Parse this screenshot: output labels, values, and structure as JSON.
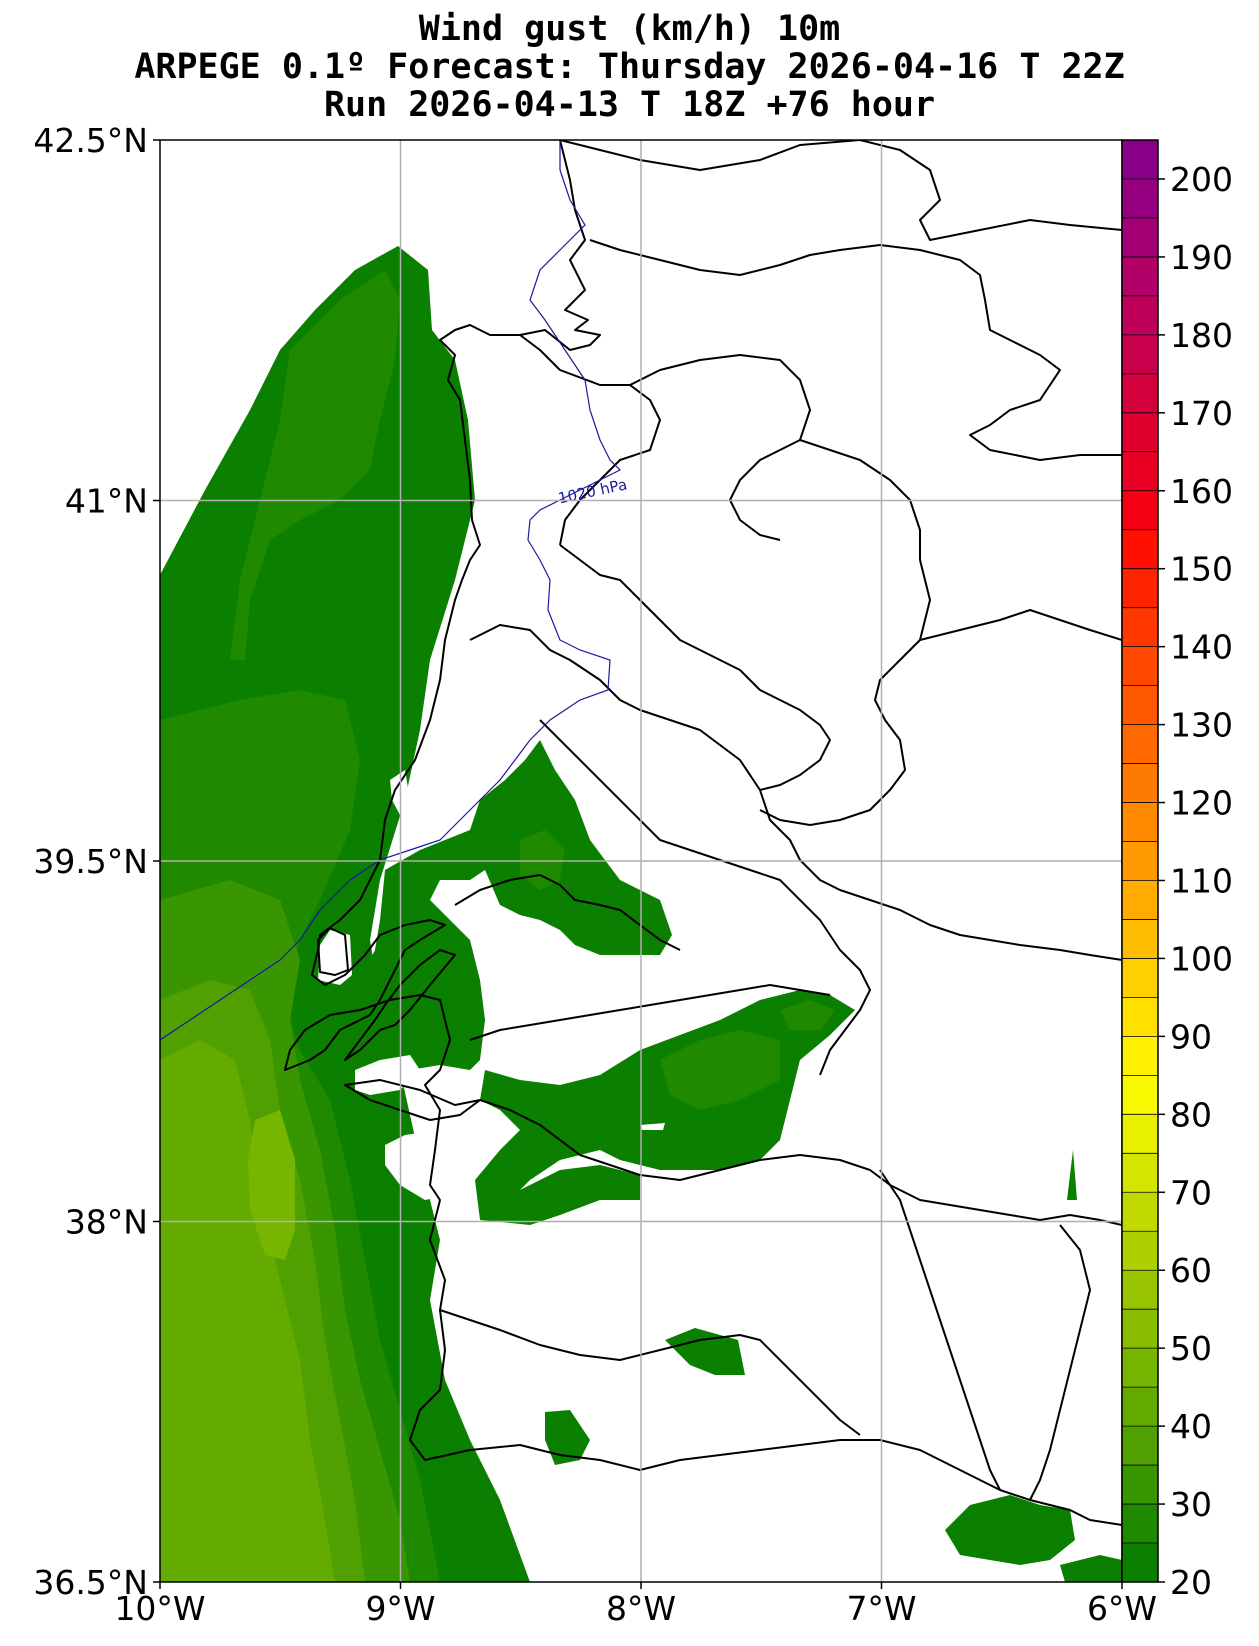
{
  "title": {
    "line1": "Wind gust (km/h) 10m",
    "line2": "ARPEGE 0.1º Forecast: Thursday 2026-04-16 T 22Z",
    "line3": "Run 2026-04-13 T 18Z +76 hour"
  },
  "map": {
    "lat_ticks": [
      "42.5°N",
      "41°N",
      "39.5°N",
      "38°N",
      "36.5°N"
    ],
    "lon_ticks": [
      "10°W",
      "9°W",
      "8°W",
      "7°W",
      "6°W"
    ],
    "extent": {
      "lon_min": -10,
      "lon_max": -6,
      "lat_min": 36.5,
      "lat_max": 42.5
    },
    "isobar_label": "1020 hPa",
    "colors": {
      "g25": "#0a7f00",
      "g30": "#1f8a00",
      "g35": "#3a9600",
      "g40": "#4fa000",
      "g45": "#64ab00",
      "g50": "#77b600"
    }
  },
  "colorbar": {
    "labels": [
      "200",
      "190",
      "180",
      "170",
      "160",
      "150",
      "140",
      "130",
      "120",
      "110",
      "100",
      "90",
      "80",
      "70",
      "60",
      "50",
      "40",
      "30",
      "20"
    ],
    "min": 20,
    "max": 205,
    "step": 5,
    "colors": [
      "#0a7f00",
      "#1f8a00",
      "#3a9600",
      "#4fa000",
      "#64ab00",
      "#77b600",
      "#88bd00",
      "#99c500",
      "#acd000",
      "#c0da00",
      "#d4e500",
      "#e8f000",
      "#f8f800",
      "#ffef00",
      "#ffe000",
      "#ffcf00",
      "#ffbd00",
      "#ffab00",
      "#ff9a00",
      "#ff8a00",
      "#ff7a00",
      "#ff6900",
      "#ff5800",
      "#ff4800",
      "#ff3800",
      "#ff2400",
      "#ff1000",
      "#f50012",
      "#ea0022",
      "#df0030",
      "#d4003e",
      "#c9004c",
      "#be005a",
      "#b20068",
      "#a40075",
      "#960080",
      "#88008a"
    ]
  }
}
